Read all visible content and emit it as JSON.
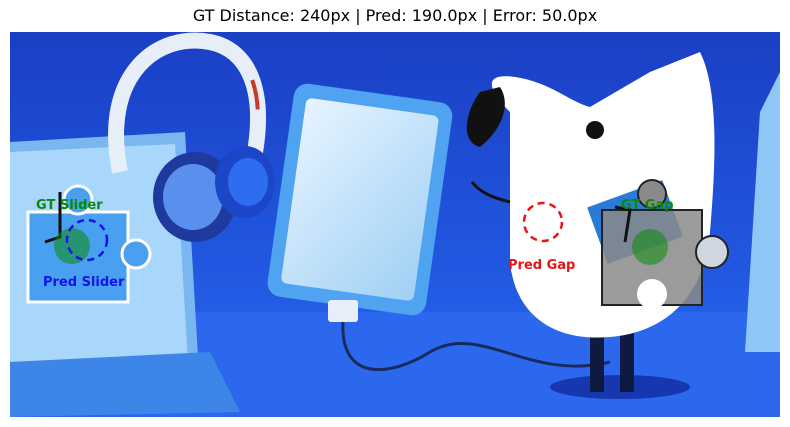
{
  "title": "GT Distance: 240px | Pred: 190.0px | Error: 50.0px",
  "labels": {
    "gt_slider": "GT Slider",
    "pred_slider": "Pred Slider",
    "gt_gap": "GT Gap",
    "pred_gap": "Pred Gap"
  },
  "colors": {
    "gt": "#0a8a0a",
    "pred_slider": "#1414e6",
    "pred_gap": "#e81414",
    "background": "#1e4fd8"
  }
}
